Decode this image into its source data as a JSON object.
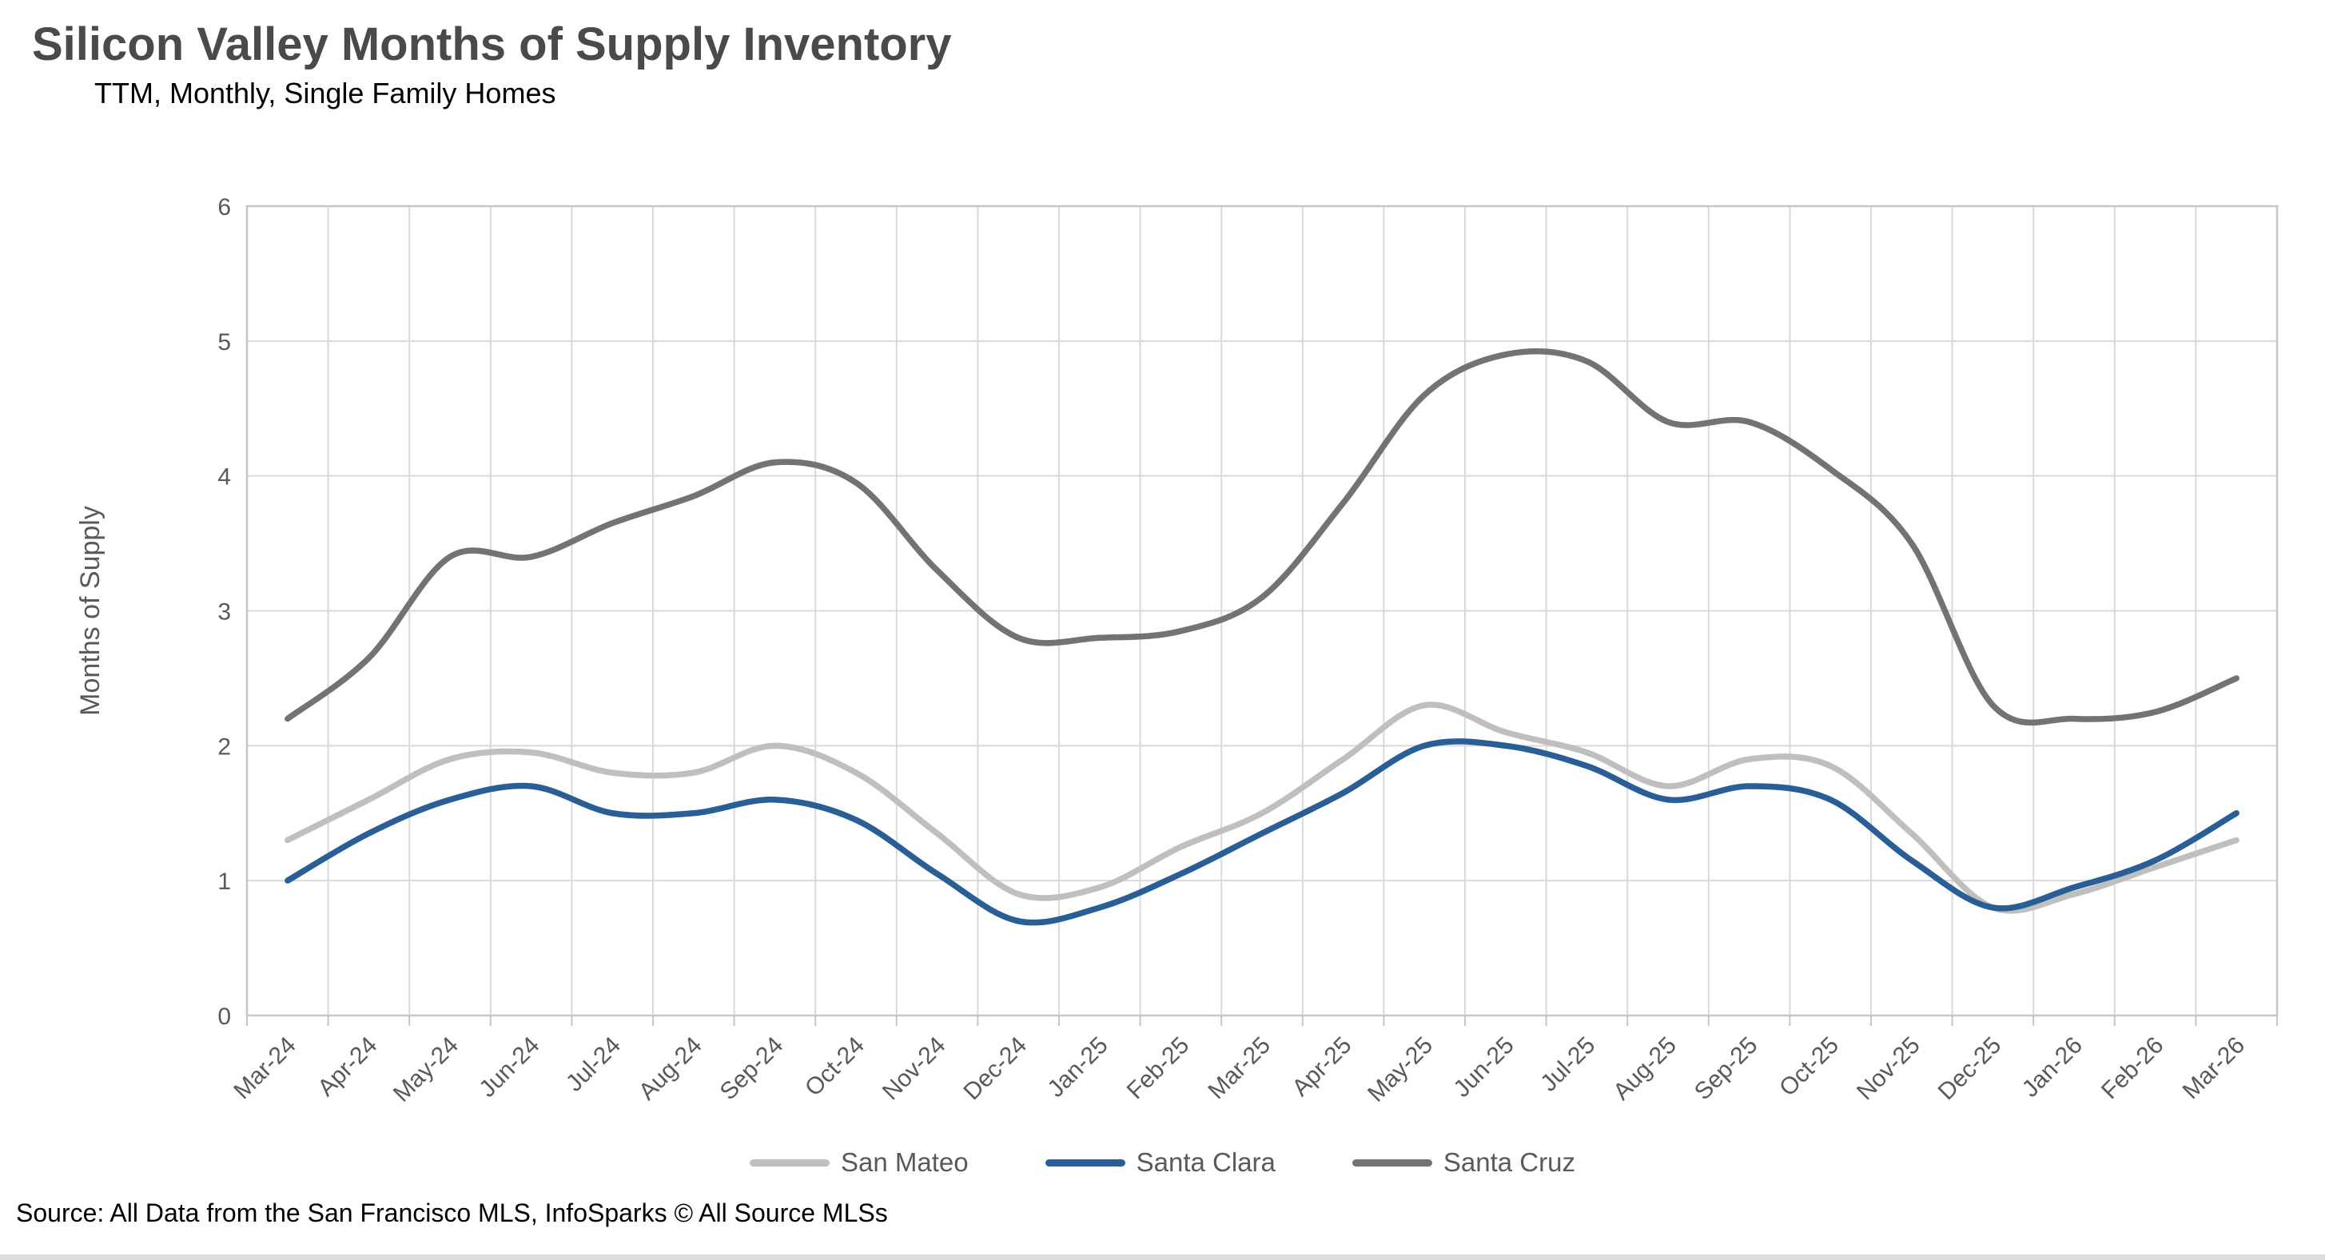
{
  "page": {
    "title": "Silicon Valley Months of Supply Inventory",
    "subtitle": "TTM, Monthly, Single Family Homes",
    "source": "Source: All Data from the San Francisco MLS, InfoSparks © All Source MLSs"
  },
  "chart_data": {
    "type": "line",
    "title": "Silicon Valley Months of Supply Inventory",
    "subtitle": "TTM, Monthly, Single Family Homes",
    "xlabel": "",
    "ylabel": "Months of Supply",
    "ylim": [
      0,
      6
    ],
    "yticks": [
      0,
      1,
      2,
      3,
      4,
      5,
      6
    ],
    "grid": true,
    "smoothed_lines": true,
    "legend_position": "bottom",
    "colors": {
      "gridline": "#d9d9d9",
      "plot_border": "#c6c6c6",
      "tick_label": "#595959",
      "axis_title": "#595959"
    },
    "categories": [
      "Mar-24",
      "Apr-24",
      "May-24",
      "Jun-24",
      "Jul-24",
      "Aug-24",
      "Sep-24",
      "Oct-24",
      "Nov-24",
      "Dec-24",
      "Jan-25",
      "Feb-25",
      "Mar-25",
      "Apr-25",
      "May-25",
      "Jun-25",
      "Jul-25",
      "Aug-25",
      "Sep-25",
      "Oct-25",
      "Nov-25",
      "Dec-25",
      "Jan-26",
      "Feb-26",
      "Mar-26"
    ],
    "series": [
      {
        "name": "San Mateo",
        "color": "#bfbfbf",
        "values": [
          1.3,
          1.6,
          1.9,
          1.95,
          1.8,
          1.8,
          2.0,
          1.8,
          1.35,
          0.9,
          0.95,
          1.25,
          1.5,
          1.9,
          2.3,
          2.1,
          1.95,
          1.7,
          1.9,
          1.85,
          1.35,
          0.8,
          0.9,
          1.1,
          1.3
        ]
      },
      {
        "name": "Santa Clara",
        "color": "#2a5e96",
        "values": [
          1.0,
          1.35,
          1.6,
          1.7,
          1.5,
          1.5,
          1.6,
          1.45,
          1.05,
          0.7,
          0.8,
          1.05,
          1.35,
          1.65,
          2.0,
          2.0,
          1.85,
          1.6,
          1.7,
          1.6,
          1.15,
          0.8,
          0.95,
          1.15,
          1.5
        ]
      },
      {
        "name": "Santa Cruz",
        "color": "#737373",
        "values": [
          2.2,
          2.65,
          3.4,
          3.4,
          3.65,
          3.85,
          4.1,
          3.95,
          3.3,
          2.8,
          2.8,
          2.85,
          3.1,
          3.8,
          4.6,
          4.9,
          4.85,
          4.4,
          4.4,
          4.05,
          3.5,
          2.3,
          2.2,
          2.25,
          2.5
        ]
      }
    ]
  }
}
